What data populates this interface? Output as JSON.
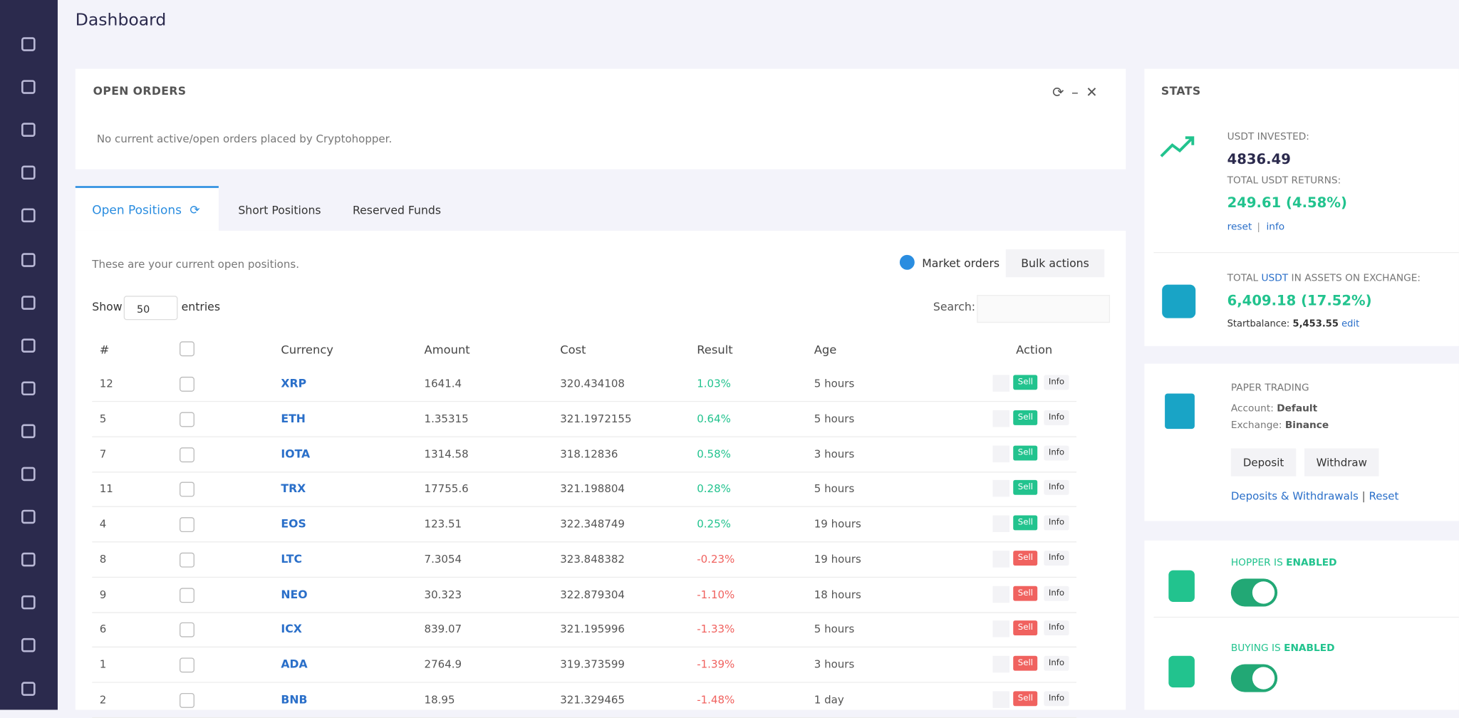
{
  "header": {
    "title": "Dashboard"
  },
  "open_orders": {
    "title": "OPEN ORDERS",
    "message": "No current active/open orders placed by Cryptohopper."
  },
  "tabs": [
    "Open Positions",
    "Short Positions",
    "Reserved Funds"
  ],
  "positions": {
    "description": "These are your current open positions.",
    "market_orders": "Market orders",
    "bulk_actions": "Bulk actions",
    "show": "Show",
    "entries_value": "50",
    "entries": "entries",
    "search": "Search:",
    "columns": [
      "#",
      "Currency",
      "Amount",
      "Cost",
      "Result",
      "Age",
      "Action"
    ],
    "rows": [
      [
        "12",
        "XRP",
        "1641.4",
        "320.434108",
        "1.03%",
        "5 hours"
      ],
      [
        "5",
        "ETH",
        "1.35315",
        "321.1972155",
        "0.64%",
        "5 hours"
      ],
      [
        "7",
        "IOTA",
        "1314.58",
        "318.12836",
        "0.58%",
        "3 hours"
      ],
      [
        "11",
        "TRX",
        "17755.6",
        "321.198804",
        "0.28%",
        "5 hours"
      ],
      [
        "4",
        "EOS",
        "123.51",
        "322.348749",
        "0.25%",
        "19 hours"
      ],
      [
        "8",
        "LTC",
        "7.3054",
        "323.848382",
        "-0.23%",
        "19 hours"
      ],
      [
        "9",
        "NEO",
        "30.323",
        "322.879304",
        "-1.10%",
        "18 hours"
      ],
      [
        "6",
        "ICX",
        "839.07",
        "321.195996",
        "-1.33%",
        "5 hours"
      ],
      [
        "1",
        "ADA",
        "2764.9",
        "319.373599",
        "-1.39%",
        "3 hours"
      ],
      [
        "2",
        "BNB",
        "18.95",
        "321.329465",
        "-1.48%",
        "1 day"
      ]
    ],
    "sell": "Sell",
    "info": "Info"
  },
  "stats": {
    "title": "STATS",
    "invested_label": "USDT INVESTED:",
    "invested": "4836.49",
    "returns_label": "TOTAL USDT RETURNS:",
    "returns": "249.61 (4.58%)",
    "reset": "reset",
    "separator": "|",
    "info": "info",
    "assets_label_start": "TOTAL",
    "assets_label_currency": "USDT",
    "assets_label_end": "IN ASSETS ON EXCHANGE:",
    "assets": "6,409.18 (17.52%)",
    "startbalance_label": "Startbalance:",
    "startbalance": "5,453.55",
    "edit": "edit"
  },
  "paper": {
    "title": "PAPER TRADING",
    "account_label": "Account:",
    "account": "Default",
    "exchange_label": "Exchange:",
    "exchange": "Binance",
    "deposit": "Deposit",
    "withdraw": "Withdraw",
    "deposits_link": "Deposits & Withdrawals",
    "separator": "|",
    "reset": "Reset"
  },
  "toggles": [
    {
      "label": "HOPPER IS",
      "state": "ENABLED"
    },
    {
      "label": "BUYING IS",
      "state": "ENABLED"
    }
  ]
}
